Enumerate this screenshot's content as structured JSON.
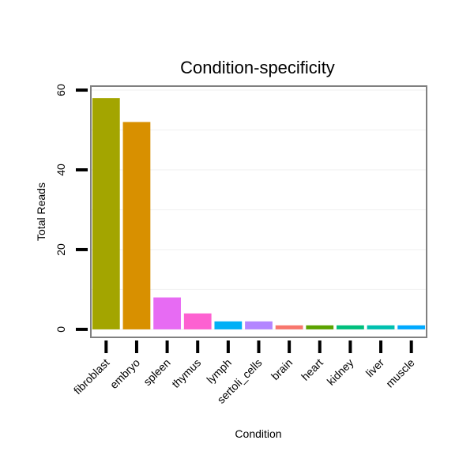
{
  "chart_data": {
    "type": "bar",
    "title": "Condition-specificity",
    "xlabel": "Condition",
    "ylabel": "Total Reads",
    "categories": [
      "fibroblast",
      "embryo",
      "spleen",
      "thymus",
      "lymph",
      "sertoli_cells",
      "brain",
      "heart",
      "kidney",
      "liver",
      "muscle"
    ],
    "values": [
      58,
      52,
      8,
      4,
      2,
      2,
      1,
      1,
      1,
      1,
      1
    ],
    "colors": [
      "#a3a500",
      "#d89000",
      "#e76bf3",
      "#fd61d1",
      "#00b0f6",
      "#b385ff",
      "#f8766d",
      "#5ba300",
      "#00bf7d",
      "#00c0af",
      "#00a9ff"
    ],
    "yticks": [
      0,
      20,
      40,
      60
    ],
    "ylim": [
      -2,
      61
    ],
    "grid": true
  }
}
